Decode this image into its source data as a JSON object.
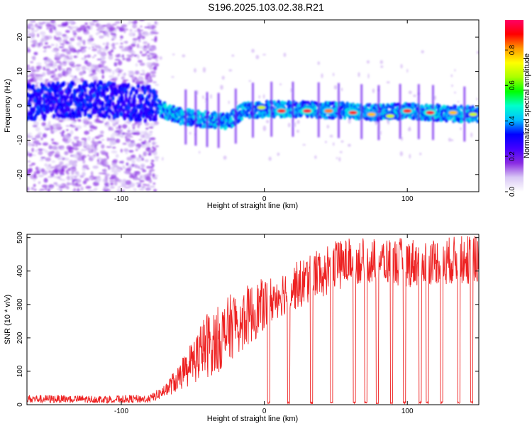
{
  "page": {
    "title": "S196.2025.103.02.38.R21"
  },
  "chart_data": [
    {
      "id": "spectrogram",
      "type": "heatmap",
      "title": "S196.2025.103.02.38.R21",
      "xlabel": "Height of straight line (km)",
      "ylabel": "Frequency (Hz)",
      "xlim": [
        -166,
        150
      ],
      "ylim": [
        -25,
        25
      ],
      "xticks": [
        -100,
        0,
        100
      ],
      "xtick_labels": [
        "-100",
        "0",
        "100"
      ],
      "yticks": [
        -20,
        -10,
        0,
        10,
        20
      ],
      "ytick_labels": [
        "-20",
        "-10",
        "0",
        "10",
        "20"
      ],
      "colorbar": {
        "label": "Normalized spectral amplitude",
        "range": [
          0,
          0.97
        ],
        "ticks": [
          0.0,
          0.2,
          0.4,
          0.6,
          0.8
        ],
        "tick_labels": [
          "0.0",
          "0.2",
          "0.4",
          "0.6",
          "0.8"
        ],
        "colormap": [
          "#ffffff",
          "#d9c8f5",
          "#8a2be2",
          "#4400ff",
          "#0000ff",
          "#00bfff",
          "#00ffcc",
          "#00ff00",
          "#aaff00",
          "#ffff00",
          "#ff9900",
          "#ff0000",
          "#ff0066"
        ]
      },
      "ridge": {
        "description_points_km": [
          -166,
          -120,
          -80,
          -60,
          -40,
          -25,
          -15,
          0,
          20,
          40,
          60,
          80,
          100,
          120,
          145
        ],
        "frequency_hz": [
          1.0,
          2.0,
          0.5,
          -3.0,
          -4.0,
          -4.5,
          -1.5,
          -1.0,
          -1.0,
          -1.2,
          -1.5,
          -2.0,
          -1.5,
          -2.0,
          -2.5
        ]
      },
      "peaks": [
        {
          "x": -2,
          "y": -0.5,
          "amplitude": 0.7
        },
        {
          "x": 12,
          "y": -1.5,
          "amplitude": 0.9
        },
        {
          "x": 30,
          "y": -1.5,
          "amplitude": 0.95
        },
        {
          "x": 45,
          "y": -1.5,
          "amplitude": 0.85
        },
        {
          "x": 62,
          "y": -2.0,
          "amplitude": 0.9
        },
        {
          "x": 75,
          "y": -2.5,
          "amplitude": 0.8
        },
        {
          "x": 88,
          "y": -3.0,
          "amplitude": 0.7
        },
        {
          "x": 100,
          "y": -1.5,
          "amplitude": 0.9
        },
        {
          "x": 116,
          "y": -2.0,
          "amplitude": 0.95
        },
        {
          "x": 132,
          "y": -2.0,
          "amplitude": 0.8
        },
        {
          "x": 146,
          "y": -2.5,
          "amplitude": 0.7
        }
      ],
      "grid": false
    },
    {
      "id": "snr",
      "type": "line",
      "xlabel": "Height of straight line (km)",
      "ylabel": "SNR (10 * v/v)",
      "xlim": [
        -166,
        150
      ],
      "ylim": [
        0,
        510
      ],
      "xticks": [
        -100,
        0,
        100
      ],
      "xtick_labels": [
        "-100",
        "0",
        "100"
      ],
      "yticks": [
        0,
        100,
        200,
        300,
        400,
        500
      ],
      "ytick_labels": [
        "0",
        "100",
        "200",
        "300",
        "400",
        "500"
      ],
      "color": "#ee2222",
      "envelope": {
        "x": [
          -166,
          -120,
          -80,
          -70,
          -60,
          -50,
          -40,
          -30,
          -20,
          -10,
          0,
          10,
          20,
          30,
          40,
          60,
          80,
          100,
          120,
          150
        ],
        "low": [
          5,
          5,
          5,
          20,
          40,
          60,
          80,
          100,
          150,
          180,
          220,
          260,
          280,
          300,
          320,
          360,
          360,
          350,
          360,
          360
        ],
        "high": [
          30,
          28,
          30,
          60,
          120,
          200,
          280,
          300,
          350,
          360,
          380,
          400,
          420,
          450,
          480,
          500,
          500,
          500,
          500,
          510
        ]
      },
      "dropouts_x": [
        3,
        17,
        33,
        47,
        63,
        71,
        79,
        89,
        98,
        109,
        114,
        124,
        136,
        145
      ],
      "grid": false
    }
  ]
}
